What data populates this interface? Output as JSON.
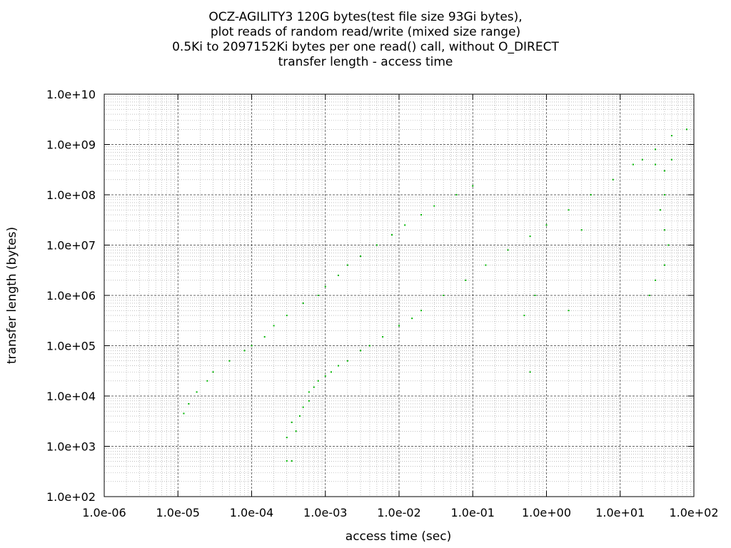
{
  "chart_data": {
    "type": "scatter",
    "title_lines": [
      "OCZ-AGILITY3 120G bytes(test file size 93Gi bytes),",
      "plot reads of random read/write (mixed size range)",
      "0.5Ki to 2097152Ki bytes per one read() call, without O_DIRECT",
      "transfer length - access time"
    ],
    "xlabel": "access time (sec)",
    "ylabel": "transfer length (bytes)",
    "x_scale": "log",
    "y_scale": "log",
    "xlim": [
      1e-06,
      100
    ],
    "ylim": [
      100,
      10000000000
    ],
    "x_ticks": [
      "1.0e-06",
      "1.0e-05",
      "1.0e-04",
      "1.0e-03",
      "1.0e-02",
      "1.0e-01",
      "1.0e+00",
      "1.0e+01",
      "1.0e+02"
    ],
    "y_ticks": [
      "1.0e+02",
      "1.0e+03",
      "1.0e+04",
      "1.0e+05",
      "1.0e+06",
      "1.0e+07",
      "1.0e+08",
      "1.0e+09",
      "1.0e+10"
    ],
    "grid": true,
    "color": "#00b400",
    "series": [
      {
        "values": [
          [
            0.0003,
            512
          ],
          [
            0.00035,
            512
          ],
          [
            0.0003,
            1500
          ],
          [
            0.00035,
            3000
          ],
          [
            0.0004,
            2000
          ],
          [
            0.00045,
            4000
          ],
          [
            0.0005,
            6000
          ],
          [
            0.0006,
            8000
          ],
          [
            0.0006,
            12000
          ],
          [
            0.0007,
            15000
          ],
          [
            0.0008,
            20000
          ],
          [
            0.001,
            25000
          ],
          [
            0.0012,
            30000
          ],
          [
            0.0015,
            40000
          ],
          [
            0.002,
            50000
          ],
          [
            0.003,
            80000
          ],
          [
            0.004,
            100000
          ],
          [
            0.006,
            150000
          ],
          [
            0.01,
            250000
          ],
          [
            0.015,
            350000
          ],
          [
            0.02,
            500000
          ],
          [
            0.04,
            1000000
          ],
          [
            0.08,
            2000000
          ],
          [
            0.15,
            4000000
          ],
          [
            0.3,
            8000000
          ],
          [
            0.6,
            15000000
          ],
          [
            1.0,
            25000000
          ],
          [
            2.0,
            50000000
          ],
          [
            4.0,
            100000000
          ],
          [
            8.0,
            200000000
          ],
          [
            15,
            400000000
          ],
          [
            30,
            800000000
          ],
          [
            50,
            1500000000
          ],
          [
            80,
            2000000000
          ],
          [
            1.2e-05,
            4500
          ],
          [
            1.4e-05,
            7000
          ],
          [
            1.8e-05,
            12000
          ],
          [
            2.5e-05,
            20000
          ],
          [
            3e-05,
            30000
          ],
          [
            5e-05,
            50000
          ],
          [
            8e-05,
            80000
          ],
          [
            0.0001,
            100000
          ],
          [
            0.00015,
            150000
          ],
          [
            0.0002,
            250000
          ],
          [
            0.0003,
            400000
          ],
          [
            0.0005,
            700000
          ],
          [
            0.0008,
            1000000
          ],
          [
            0.001,
            1500000
          ],
          [
            0.0015,
            2500000
          ],
          [
            0.002,
            4000000
          ],
          [
            0.003,
            6000000
          ],
          [
            0.005,
            10000000
          ],
          [
            0.008,
            16000000
          ],
          [
            0.012,
            25000000
          ],
          [
            0.02,
            40000000
          ],
          [
            0.03,
            60000000
          ],
          [
            0.06,
            100000000
          ],
          [
            0.1,
            150000000
          ],
          [
            20,
            500000000
          ],
          [
            30,
            400000000
          ],
          [
            40,
            300000000
          ],
          [
            50,
            500000000
          ],
          [
            40,
            100000000
          ],
          [
            35,
            50000000
          ],
          [
            40,
            20000000
          ],
          [
            45,
            10000000
          ],
          [
            40,
            4000000
          ],
          [
            30,
            2000000
          ],
          [
            25,
            1000000
          ],
          [
            0.7,
            1000000
          ],
          [
            0.5,
            400000
          ],
          [
            0.6,
            30000
          ],
          [
            2,
            500000
          ],
          [
            3,
            20000000
          ]
        ]
      }
    ]
  }
}
